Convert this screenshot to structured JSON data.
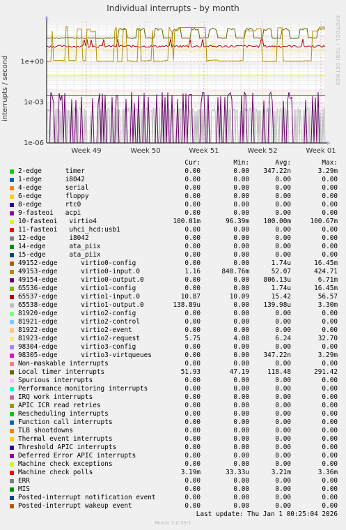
{
  "title": "Individual interrupts - by month",
  "watermark": "RRDTOOL / TOBI OETIKER",
  "footer": {
    "last_update": "Last update:  Thu Jan  1 00:25:04 2026",
    "munin": "Munin 2.0.33-1"
  },
  "columns": {
    "cur": "Cur:",
    "min": "Min:",
    "avg": "Avg:",
    "max": "Max:"
  },
  "chart_data": {
    "type": "line",
    "title": "Individual interrupts - by month",
    "ylabel": "interrupts / second",
    "yscale": "log",
    "ylim": [
      1e-06,
      1000
    ],
    "yticks": [
      "1e-06",
      "1e-03",
      "1e+00"
    ],
    "xticks": [
      "Week 49",
      "Week 50",
      "Week 51",
      "Week 52",
      "Week 01"
    ],
    "grid": true,
    "series": [
      {
        "name": "2-edge      timer",
        "color": "#00cc00",
        "cur": "0.00",
        "min": "0.00",
        "avg": "347.22n",
        "max": "3.29m"
      },
      {
        "name": "1-edge      i8042",
        "color": "#0066b3",
        "cur": "0.00",
        "min": "0.00",
        "avg": "0.00",
        "max": "0.00"
      },
      {
        "name": "4-edge      serial",
        "color": "#ff8000",
        "cur": "0.00",
        "min": "0.00",
        "avg": "0.00",
        "max": "0.00"
      },
      {
        "name": "6-edge      floppy",
        "color": "#ffcc00",
        "cur": "0.00",
        "min": "0.00",
        "avg": "0.00",
        "max": "0.00"
      },
      {
        "name": "8-edge      rtc0",
        "color": "#330099",
        "cur": "0.00",
        "min": "0.00",
        "avg": "0.00",
        "max": "0.00"
      },
      {
        "name": "9-fasteoi   acpi",
        "color": "#990099",
        "cur": "0.00",
        "min": "0.00",
        "avg": "0.00",
        "max": "0.00"
      },
      {
        "name": "10-fasteoi   virtio4",
        "color": "#ccff00",
        "cur": "100.01m",
        "min": "96.39m",
        "avg": "100.00m",
        "max": "100.67m"
      },
      {
        "name": "11-fasteoi   uhci_hcd:usb1",
        "color": "#ff0000",
        "cur": "0.00",
        "min": "0.00",
        "avg": "0.00",
        "max": "0.00"
      },
      {
        "name": "12-edge      i8042",
        "color": "#808080",
        "cur": "0.00",
        "min": "0.00",
        "avg": "0.00",
        "max": "0.00"
      },
      {
        "name": "14-edge      ata_piix",
        "color": "#008f00",
        "cur": "0.00",
        "min": "0.00",
        "avg": "0.00",
        "max": "0.00"
      },
      {
        "name": "15-edge      ata_piix",
        "color": "#00487d",
        "cur": "0.00",
        "min": "0.00",
        "avg": "0.00",
        "max": "0.00"
      },
      {
        "name": "49152-edge      virtio0-config",
        "color": "#b35a00",
        "cur": "0.00",
        "min": "0.00",
        "avg": "1.74u",
        "max": "16.45m"
      },
      {
        "name": "49153-edge      virtio0-input.0",
        "color": "#b38f00",
        "cur": "1.16",
        "min": "840.76m",
        "avg": "52.07",
        "max": "424.71"
      },
      {
        "name": "49154-edge      virtio0-output.0",
        "color": "#6b006b",
        "cur": "0.00",
        "min": "0.00",
        "avg": "806.13u",
        "max": "6.71m"
      },
      {
        "name": "65536-edge      virtio1-config",
        "color": "#8fb300",
        "cur": "0.00",
        "min": "0.00",
        "avg": "1.74u",
        "max": "16.45m"
      },
      {
        "name": "65537-edge      virtio1-input.0",
        "color": "#b30000",
        "cur": "10.87",
        "min": "10.09",
        "avg": "15.42",
        "max": "56.57"
      },
      {
        "name": "65538-edge      virtio1-output.0",
        "color": "#bebebe",
        "cur": "138.89u",
        "min": "0.00",
        "avg": "139.98u",
        "max": "3.30m"
      },
      {
        "name": "81920-edge      virtio2-config",
        "color": "#80ff80",
        "cur": "0.00",
        "min": "0.00",
        "avg": "0.00",
        "max": "0.00"
      },
      {
        "name": "81921-edge      virtio2-control",
        "color": "#80c9ff",
        "cur": "0.00",
        "min": "0.00",
        "avg": "0.00",
        "max": "0.00"
      },
      {
        "name": "81922-edge      virtio2-event",
        "color": "#ffc080",
        "cur": "0.00",
        "min": "0.00",
        "avg": "0.00",
        "max": "0.00"
      },
      {
        "name": "81923-edge      virtio2-request",
        "color": "#ffe680",
        "cur": "5.75",
        "min": "4.08",
        "avg": "6.24",
        "max": "32.70"
      },
      {
        "name": "98304-edge      virtio3-config",
        "color": "#aa80ff",
        "cur": "0.00",
        "min": "0.00",
        "avg": "0.00",
        "max": "0.00"
      },
      {
        "name": "98305-edge      virtio3-virtqueues",
        "color": "#ee00cc",
        "cur": "0.00",
        "min": "0.00",
        "avg": "347.22n",
        "max": "3.29m"
      },
      {
        "name": "Non-maskable interrupts",
        "color": "#ff8080",
        "cur": "0.00",
        "min": "0.00",
        "avg": "0.00",
        "max": "0.00"
      },
      {
        "name": "Local timer interrupts",
        "color": "#666600",
        "cur": "51.93",
        "min": "47.19",
        "avg": "118.48",
        "max": "291.42"
      },
      {
        "name": "Spurious interrupts",
        "color": "#ffbfff",
        "cur": "0.00",
        "min": "0.00",
        "avg": "0.00",
        "max": "0.00"
      },
      {
        "name": "Performance monitoring interrupts",
        "color": "#00ffcc",
        "cur": "0.00",
        "min": "0.00",
        "avg": "0.00",
        "max": "0.00"
      },
      {
        "name": "IRQ work interrupts",
        "color": "#cc6699",
        "cur": "0.00",
        "min": "0.00",
        "avg": "0.00",
        "max": "0.00"
      },
      {
        "name": "APIC ICR read retries",
        "color": "#999900",
        "cur": "0.00",
        "min": "0.00",
        "avg": "0.00",
        "max": "0.00"
      },
      {
        "name": "Rescheduling interrupts",
        "color": "#00cc00",
        "cur": "0.00",
        "min": "0.00",
        "avg": "0.00",
        "max": "0.00"
      },
      {
        "name": "Function call interrupts",
        "color": "#0066b3",
        "cur": "0.00",
        "min": "0.00",
        "avg": "0.00",
        "max": "0.00"
      },
      {
        "name": "TLB shootdowns",
        "color": "#ff8000",
        "cur": "0.00",
        "min": "0.00",
        "avg": "0.00",
        "max": "0.00"
      },
      {
        "name": "Thermal event interrupts",
        "color": "#ffcc00",
        "cur": "0.00",
        "min": "0.00",
        "avg": "0.00",
        "max": "0.00"
      },
      {
        "name": "Threshold APIC interrupts",
        "color": "#330099",
        "cur": "0.00",
        "min": "0.00",
        "avg": "0.00",
        "max": "0.00"
      },
      {
        "name": "Deferred Error APIC interrupts",
        "color": "#990099",
        "cur": "0.00",
        "min": "0.00",
        "avg": "0.00",
        "max": "0.00"
      },
      {
        "name": "Machine check exceptions",
        "color": "#ccff00",
        "cur": "0.00",
        "min": "0.00",
        "avg": "0.00",
        "max": "0.00"
      },
      {
        "name": "Machine check polls",
        "color": "#ff0000",
        "cur": "3.19m",
        "min": "33.33u",
        "avg": "3.21m",
        "max": "3.36m"
      },
      {
        "name": "ERR",
        "color": "#808080",
        "cur": "0.00",
        "min": "0.00",
        "avg": "0.00",
        "max": "0.00"
      },
      {
        "name": "MIS",
        "color": "#008f00",
        "cur": "0.00",
        "min": "0.00",
        "avg": "0.00",
        "max": "0.00"
      },
      {
        "name": "Posted-interrupt notification event",
        "color": "#00487d",
        "cur": "0.00",
        "min": "0.00",
        "avg": "0.00",
        "max": "0.00"
      },
      {
        "name": "Posted-interrupt wakeup event",
        "color": "#b35a00",
        "cur": "0.00",
        "min": "0.00",
        "avg": "0.00",
        "max": "0.00"
      }
    ]
  }
}
